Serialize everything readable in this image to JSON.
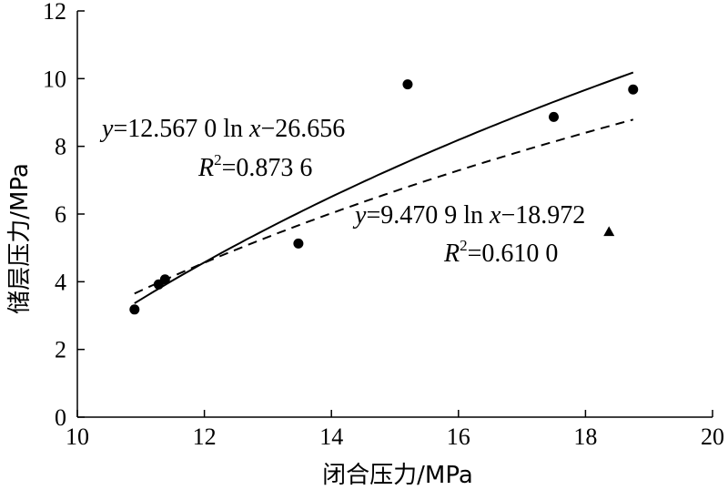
{
  "chart_data": {
    "type": "scatter",
    "xlabel": "闭合压力/MPa",
    "ylabel": "储层压力/MPa",
    "xlim": [
      10,
      20
    ],
    "ylim": [
      0,
      12
    ],
    "xticks": [
      10,
      12,
      14,
      16,
      18,
      20
    ],
    "yticks": [
      0,
      2,
      4,
      6,
      8,
      10,
      12
    ],
    "grid": false,
    "series": [
      {
        "marker": "circle",
        "x": [
          10.9,
          11.28,
          11.38,
          13.48,
          15.2,
          17.5,
          18.75
        ],
        "y": [
          3.18,
          3.92,
          4.07,
          5.13,
          9.83,
          8.87,
          9.68
        ]
      },
      {
        "marker": "triangle",
        "x": [
          18.37
        ],
        "y": [
          5.48
        ]
      }
    ],
    "fits": [
      {
        "style": "solid",
        "a": 12.567,
        "b": -26.656,
        "x_range": [
          10.9,
          18.75
        ],
        "equation": [
          "y",
          "=12.567 0 ln ",
          "x",
          "−26.656"
        ],
        "r2_value": "=0.873 6"
      },
      {
        "style": "dashed",
        "a": 9.4709,
        "b": -18.972,
        "x_range": [
          10.9,
          18.75
        ],
        "equation": [
          "y",
          "=9.470 9 ln ",
          "x",
          "−18.972"
        ],
        "r2_value": "=0.610 0"
      }
    ]
  }
}
